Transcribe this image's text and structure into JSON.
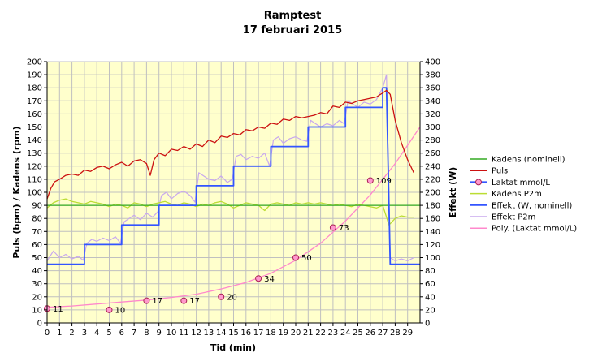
{
  "chart_data": {
    "type": "line",
    "title": "Ramptest",
    "subtitle": "17 februari 2015",
    "xlabel": "Tid (min)",
    "ylabel": "Puls (bpm) / Kadens (rpm)",
    "y2label": "Effekt (W)",
    "xlim": [
      0,
      30
    ],
    "ylim": [
      0,
      200
    ],
    "y2lim": [
      0,
      400
    ],
    "x_ticks": [
      0,
      1,
      2,
      3,
      4,
      5,
      6,
      7,
      8,
      9,
      10,
      11,
      12,
      13,
      14,
      15,
      16,
      17,
      18,
      19,
      20,
      21,
      22,
      23,
      24,
      25,
      26,
      27,
      28,
      29
    ],
    "y_ticks": [
      0,
      10,
      20,
      30,
      40,
      50,
      60,
      70,
      80,
      90,
      100,
      110,
      120,
      130,
      140,
      150,
      160,
      170,
      180,
      190,
      200
    ],
    "y2_ticks": [
      0,
      20,
      40,
      60,
      80,
      100,
      120,
      140,
      160,
      180,
      200,
      220,
      240,
      260,
      280,
      300,
      320,
      340,
      360,
      380,
      400
    ],
    "grid": true,
    "plot_background": "#ffffcc",
    "legend_position": "right",
    "series": [
      {
        "name": "Kadens (nominell)",
        "color": "#33aa22",
        "axis": "left",
        "x": [
          0,
          30
        ],
        "y": [
          90,
          90
        ]
      },
      {
        "name": "Puls",
        "color": "#cc1111",
        "axis": "left",
        "x": [
          0,
          0.3,
          0.6,
          1,
          1.5,
          2,
          2.5,
          3,
          3.5,
          4,
          4.5,
          5,
          5.5,
          6,
          6.5,
          7,
          7.5,
          8,
          8.3,
          8.6,
          9,
          9.5,
          10,
          10.5,
          11,
          11.5,
          12,
          12.5,
          13,
          13.5,
          14,
          14.5,
          15,
          15.5,
          16,
          16.5,
          17,
          17.5,
          18,
          18.5,
          19,
          19.5,
          20,
          20.5,
          21,
          21.5,
          22,
          22.5,
          23,
          23.5,
          24,
          24.5,
          25,
          25.5,
          26,
          26.5,
          27,
          27.3,
          27.6,
          28,
          28.5,
          29,
          29.5
        ],
        "y": [
          95,
          103,
          108,
          110,
          113,
          114,
          113,
          117,
          116,
          119,
          120,
          118,
          121,
          123,
          120,
          124,
          125,
          122,
          113,
          125,
          130,
          128,
          133,
          132,
          135,
          133,
          137,
          135,
          140,
          138,
          143,
          142,
          145,
          144,
          148,
          147,
          150,
          149,
          153,
          152,
          156,
          155,
          158,
          157,
          158,
          159,
          161,
          160,
          166,
          165,
          169,
          168,
          170,
          171,
          172,
          173,
          176,
          178,
          175,
          155,
          138,
          125,
          115
        ]
      },
      {
        "name": "Laktat mmol/L",
        "color": "#3355ff",
        "axis": "left",
        "x": [
          0,
          5,
          8,
          11,
          14,
          17,
          20,
          23,
          26
        ],
        "y": [
          11,
          10,
          17,
          17,
          20,
          34,
          50,
          73,
          109
        ],
        "labels": [
          "11",
          "10",
          "17",
          "17",
          "20",
          "34",
          "50",
          "73",
          "109"
        ]
      },
      {
        "name": "Kadens P2m",
        "color": "#bbdd33",
        "axis": "left",
        "x": [
          0,
          0.5,
          1,
          1.5,
          2,
          2.5,
          3,
          3.5,
          4,
          4.5,
          5,
          5.5,
          6,
          6.5,
          7,
          7.5,
          8,
          8.5,
          9,
          9.5,
          10,
          10.5,
          11,
          11.5,
          12,
          12.5,
          13,
          13.5,
          14,
          14.5,
          15,
          15.5,
          16,
          16.5,
          17,
          17.5,
          18,
          18.5,
          19,
          19.5,
          20,
          20.5,
          21,
          21.5,
          22,
          22.5,
          23,
          23.5,
          24,
          24.5,
          25,
          25.5,
          26,
          26.5,
          27,
          27.5,
          28,
          28.5,
          29,
          29.5
        ],
        "y": [
          88,
          92,
          94,
          95,
          93,
          92,
          91,
          93,
          92,
          91,
          89,
          91,
          90,
          88,
          92,
          91,
          89,
          91,
          92,
          93,
          91,
          90,
          92,
          91,
          89,
          91,
          90,
          92,
          93,
          91,
          88,
          90,
          92,
          91,
          90,
          86,
          91,
          92,
          91,
          90,
          92,
          91,
          92,
          91,
          92,
          91,
          90,
          91,
          90,
          89,
          91,
          90,
          89,
          88,
          90,
          75,
          80,
          82,
          81,
          81
        ]
      },
      {
        "name": "Effekt (W, nominell)",
        "color": "#3355ff",
        "axis": "right",
        "x": [
          0,
          3,
          3,
          6,
          6,
          9,
          9,
          12,
          12,
          15,
          15,
          18,
          18,
          21,
          21,
          24,
          24,
          27,
          27,
          27.3,
          27.6,
          30
        ],
        "y": [
          90,
          90,
          120,
          120,
          150,
          150,
          180,
          180,
          210,
          210,
          240,
          240,
          270,
          270,
          300,
          300,
          330,
          330,
          360,
          360,
          90,
          90
        ]
      },
      {
        "name": "Effekt P2m",
        "color": "#c8a8ee",
        "axis": "right",
        "x": [
          0,
          0.5,
          1,
          1.5,
          2,
          2.5,
          2.9,
          3.2,
          3.6,
          4,
          4.5,
          5,
          5.5,
          5.9,
          6.2,
          6.6,
          7,
          7.5,
          8,
          8.5,
          8.9,
          9.2,
          9.6,
          10,
          10.5,
          11,
          11.5,
          11.9,
          12.2,
          12.6,
          13,
          13.5,
          14,
          14.5,
          14.9,
          15.2,
          15.6,
          16,
          16.5,
          17,
          17.5,
          17.9,
          18.2,
          18.6,
          19,
          19.5,
          20,
          20.5,
          20.9,
          21.2,
          21.6,
          22,
          22.5,
          23,
          23.5,
          23.9,
          24.2,
          24.6,
          25,
          25.5,
          26,
          26.5,
          27,
          27.3,
          27.6,
          28,
          28.5,
          29,
          29.5
        ],
        "y": [
          95,
          110,
          100,
          105,
          98,
          102,
          96,
          122,
          128,
          125,
          130,
          126,
          132,
          122,
          155,
          160,
          165,
          158,
          168,
          162,
          170,
          195,
          200,
          190,
          198,
          202,
          195,
          185,
          230,
          225,
          220,
          218,
          225,
          215,
          220,
          255,
          258,
          250,
          255,
          252,
          260,
          240,
          280,
          285,
          275,
          282,
          285,
          280,
          278,
          310,
          305,
          300,
          305,
          302,
          310,
          305,
          340,
          335,
          330,
          338,
          335,
          342,
          360,
          380,
          100,
          95,
          98,
          95,
          100
        ]
      },
      {
        "name": "Poly. (Laktat mmol/L)",
        "color": "#ff88cc",
        "axis": "left",
        "x": [
          0,
          2,
          4,
          6,
          8,
          10,
          12,
          14,
          16,
          18,
          20,
          22,
          24,
          26,
          28,
          30
        ],
        "y": [
          12,
          13,
          14.5,
          16,
          17.5,
          19.5,
          22,
          26,
          31,
          38,
          48,
          61,
          78,
          98,
          122,
          150
        ]
      }
    ]
  }
}
